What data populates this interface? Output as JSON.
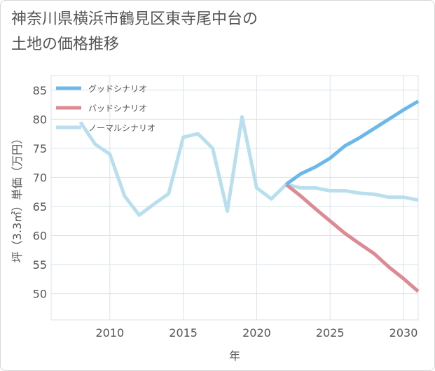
{
  "chart_data": {
    "type": "line",
    "title": "神奈川県横浜市鶴見区東寺尾中台の\n土地の価格推移",
    "xlabel": "年",
    "ylabel": "坪（3.3㎡）単価（万円）",
    "xlim": [
      2006,
      2031
    ],
    "ylim": [
      45.5,
      87.5
    ],
    "xticks": [
      2010,
      2015,
      2020,
      2025,
      2030
    ],
    "yticks": [
      50,
      55,
      60,
      65,
      70,
      75,
      80,
      85
    ],
    "legend_position": "top-left",
    "series": [
      {
        "name": "グッドシナリオ",
        "color": "#6bb8ea",
        "x": [
          2022,
          2023,
          2024,
          2025,
          2026,
          2027,
          2028,
          2029,
          2030,
          2031
        ],
        "values": [
          68.8,
          70.6,
          71.8,
          73.3,
          75.4,
          76.8,
          78.4,
          80.0,
          81.6,
          83.1
        ]
      },
      {
        "name": "バッドシナリオ",
        "color": "#dd8a93",
        "x": [
          2022,
          2023,
          2024,
          2025,
          2026,
          2027,
          2028,
          2029,
          2030,
          2031
        ],
        "values": [
          68.8,
          66.8,
          64.6,
          62.5,
          60.4,
          58.6,
          56.9,
          54.6,
          52.6,
          50.4
        ]
      },
      {
        "name": "ノーマルシナリオ",
        "color": "#b9dfee",
        "x": [
          2008,
          2009,
          2010,
          2011,
          2012,
          2013,
          2014,
          2015,
          2016,
          2017,
          2018,
          2019,
          2020,
          2021,
          2022,
          2023,
          2024,
          2025,
          2026,
          2027,
          2028,
          2029,
          2030,
          2031
        ],
        "values": [
          79.5,
          75.7,
          74.0,
          66.8,
          63.5,
          65.4,
          67.2,
          76.9,
          77.5,
          75.0,
          64.2,
          80.4,
          68.2,
          66.3,
          68.8,
          68.2,
          68.2,
          67.7,
          67.7,
          67.3,
          67.1,
          66.6,
          66.6,
          66.1
        ]
      }
    ]
  }
}
